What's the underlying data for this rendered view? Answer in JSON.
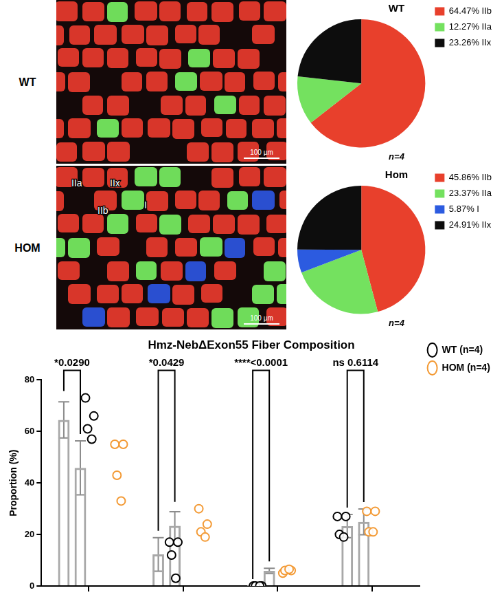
{
  "micrographs": [
    {
      "label": "WT",
      "scale_bar": "100 µm"
    },
    {
      "label": "HOM",
      "scale_bar": "100 µm",
      "fiber_labels": [
        "IIa",
        "IIx",
        "IIb",
        "I"
      ]
    }
  ],
  "chart_data": [
    {
      "type": "pie",
      "title": "WT",
      "subtitle": "n=4",
      "categories": [
        "64.47% IIb",
        "12.27% IIa",
        "23.26% IIx"
      ],
      "values": [
        64.47,
        12.27,
        23.26
      ],
      "colors": [
        "#e8402c",
        "#74e15f",
        "#0d0d0d"
      ],
      "legend": "right"
    },
    {
      "type": "pie",
      "title": "Hom",
      "subtitle": "n=4",
      "categories": [
        "45.86% IIb",
        "23.37% IIa",
        "5.87% I",
        "24.91% IIx"
      ],
      "values": [
        45.86,
        23.37,
        5.87,
        24.91
      ],
      "colors": [
        "#e8402c",
        "#74e15f",
        "#2c5be0",
        "#0d0d0d"
      ],
      "legend": "right"
    },
    {
      "type": "bar",
      "title": "Hmz-NebΔExon55 Fiber Composition",
      "categories": [
        null,
        null,
        null,
        null
      ],
      "y_label": "Proportion (%)",
      "ylim": [
        0,
        80
      ],
      "yticks": [
        0,
        20,
        40,
        60,
        80
      ],
      "grid": false,
      "legend": "right",
      "tick_labels": "y",
      "annotations": [
        "*0.0290",
        "*0.0429",
        "****<0.0001",
        "ns 0.6114"
      ],
      "series": [
        {
          "name": "WT (n=4)",
          "color": "#000000",
          "marker": "circle",
          "values": [
            64.47,
            12.27,
            0,
            23.26
          ],
          "error": [
            7.0,
            6.5,
            0,
            4.5
          ],
          "points": [
            [
              73,
              66,
              61,
              57
            ],
            [
              17,
              17,
              12,
              3
            ],
            [
              0,
              0,
              0,
              0
            ],
            [
              27,
              27,
              20,
              19
            ]
          ]
        },
        {
          "name": "HOM (n=4)",
          "color": "#f39a35",
          "marker": "circle",
          "values": [
            45.86,
            23.37,
            5.87,
            24.91
          ],
          "error": [
            10.5,
            5.5,
            1.0,
            5.0
          ],
          "points": [
            [
              55,
              55,
              43,
              33
            ],
            [
              30,
              24,
              21,
              19
            ],
            [
              5,
              6,
              6,
              6.5
            ],
            [
              29,
              29,
              21,
              21
            ]
          ]
        }
      ]
    }
  ]
}
